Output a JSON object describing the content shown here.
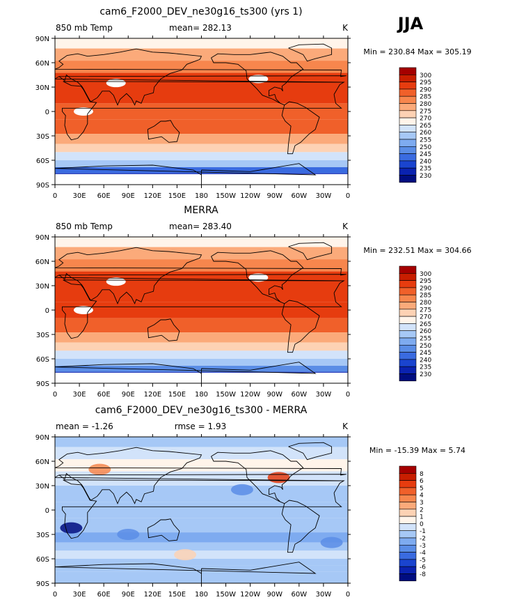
{
  "season_label": "JJA",
  "chart_data": [
    {
      "type": "heatmap",
      "title": "cam6_F2000_DEV_ne30g16_ts300 (yrs 1)",
      "left_label": "850 mb Temp",
      "center_label": "mean= 282.13",
      "units": "K",
      "minmax_label": "Min = 230.84 Max = 305.19",
      "min": 230.84,
      "max": 305.19,
      "xticks": [
        "0",
        "30E",
        "60E",
        "90E",
        "120E",
        "150E",
        "180",
        "150W",
        "120W",
        "90W",
        "60W",
        "30W",
        "0"
      ],
      "yticks": [
        "90N",
        "60N",
        "30N",
        "0",
        "30S",
        "60S",
        "90S"
      ],
      "ylim": [
        -90,
        90
      ],
      "xlim": [
        0,
        360
      ],
      "levels": [
        "300",
        "295",
        "290",
        "285",
        "280",
        "275",
        "270",
        "265",
        "260",
        "255",
        "250",
        "245",
        "240",
        "235",
        "230"
      ],
      "colors": [
        "#a50000",
        "#c81e00",
        "#e63c0f",
        "#f0602a",
        "#f7864d",
        "#fbaa7a",
        "#fdd2b4",
        "#fff4ea",
        "#d2e3fa",
        "#a6c8f6",
        "#7eabf0",
        "#5a8de6",
        "#3a6be0",
        "#1a44cf",
        "#0a22b0",
        "#000d80"
      ],
      "zonal_profile": [
        {
          "lat": 85,
          "v": 266
        },
        {
          "lat": 70,
          "v": 275
        },
        {
          "lat": 55,
          "v": 283
        },
        {
          "lat": 40,
          "v": 290
        },
        {
          "lat": 20,
          "v": 291
        },
        {
          "lat": 0,
          "v": 289
        },
        {
          "lat": -20,
          "v": 285
        },
        {
          "lat": -35,
          "v": 277
        },
        {
          "lat": -45,
          "v": 271
        },
        {
          "lat": -55,
          "v": 263
        },
        {
          "lat": -65,
          "v": 255
        },
        {
          "lat": -72,
          "v": 244
        },
        {
          "lat": -80,
          "v": 232
        }
      ]
    },
    {
      "type": "heatmap",
      "title": "MERRA",
      "left_label": "850 mb Temp",
      "center_label": "mean= 283.40",
      "units": "K",
      "minmax_label": "Min = 232.51 Max = 304.66",
      "min": 232.51,
      "max": 304.66,
      "xticks": [
        "0",
        "30E",
        "60E",
        "90E",
        "120E",
        "150E",
        "180",
        "150W",
        "120W",
        "90W",
        "60W",
        "30W",
        "0"
      ],
      "yticks": [
        "90N",
        "60N",
        "30N",
        "0",
        "30S",
        "60S",
        "90S"
      ],
      "ylim": [
        -90,
        90
      ],
      "xlim": [
        0,
        360
      ],
      "levels": [
        "300",
        "295",
        "290",
        "285",
        "280",
        "275",
        "270",
        "265",
        "260",
        "255",
        "250",
        "245",
        "240",
        "235",
        "230"
      ],
      "colors": [
        "#a50000",
        "#c81e00",
        "#e63c0f",
        "#f0602a",
        "#f7864d",
        "#fbaa7a",
        "#fdd2b4",
        "#fff4ea",
        "#d2e3fa",
        "#a6c8f6",
        "#7eabf0",
        "#5a8de6",
        "#3a6be0",
        "#1a44cf",
        "#0a22b0",
        "#000d80"
      ],
      "zonal_profile": [
        {
          "lat": 85,
          "v": 269
        },
        {
          "lat": 70,
          "v": 277
        },
        {
          "lat": 55,
          "v": 284
        },
        {
          "lat": 40,
          "v": 290
        },
        {
          "lat": 20,
          "v": 292
        },
        {
          "lat": 0,
          "v": 290
        },
        {
          "lat": -20,
          "v": 286
        },
        {
          "lat": -35,
          "v": 278
        },
        {
          "lat": -45,
          "v": 272
        },
        {
          "lat": -55,
          "v": 264
        },
        {
          "lat": -65,
          "v": 256
        },
        {
          "lat": -72,
          "v": 245
        },
        {
          "lat": -80,
          "v": 233
        }
      ]
    },
    {
      "type": "heatmap",
      "title": "cam6_F2000_DEV_ne30g16_ts300 - MERRA",
      "left_label": "mean = -1.26",
      "center_label": "rmse = 1.93",
      "units": "K",
      "minmax_label": "Min = -15.39 Max = 5.74",
      "min": -15.39,
      "max": 5.74,
      "xticks": [
        "0",
        "30E",
        "60E",
        "90E",
        "120E",
        "150E",
        "180",
        "150W",
        "120W",
        "90W",
        "60W",
        "30W",
        "0"
      ],
      "yticks": [
        "90N",
        "60N",
        "30N",
        "0",
        "30S",
        "60S",
        "90S"
      ],
      "ylim": [
        -90,
        90
      ],
      "xlim": [
        0,
        360
      ],
      "levels": [
        "8",
        "6",
        "5",
        "4",
        "3",
        "2",
        "1",
        "0",
        "-1",
        "-2",
        "-3",
        "-4",
        "-5",
        "-6",
        "-8"
      ],
      "colors": [
        "#a50000",
        "#c81e00",
        "#e63c0f",
        "#f0602a",
        "#f7864d",
        "#fbaa7a",
        "#fdd2b4",
        "#fff4ea",
        "#d2e3fa",
        "#a6c8f6",
        "#7eabf0",
        "#5a8de6",
        "#3a6be0",
        "#1a44cf",
        "#0a22b0",
        "#000d80"
      ],
      "zonal_profile": [
        {
          "lat": 85,
          "v": -1.5
        },
        {
          "lat": 70,
          "v": -0.5
        },
        {
          "lat": 55,
          "v": 0.5
        },
        {
          "lat": 40,
          "v": -0.8
        },
        {
          "lat": 20,
          "v": -1.5
        },
        {
          "lat": 0,
          "v": -1.2
        },
        {
          "lat": -20,
          "v": -1.8
        },
        {
          "lat": -35,
          "v": -2.4
        },
        {
          "lat": -45,
          "v": -1.5
        },
        {
          "lat": -55,
          "v": -1.0
        },
        {
          "lat": -65,
          "v": -1.3
        },
        {
          "lat": -72,
          "v": -1.8
        },
        {
          "lat": -80,
          "v": -1.6
        }
      ]
    }
  ]
}
